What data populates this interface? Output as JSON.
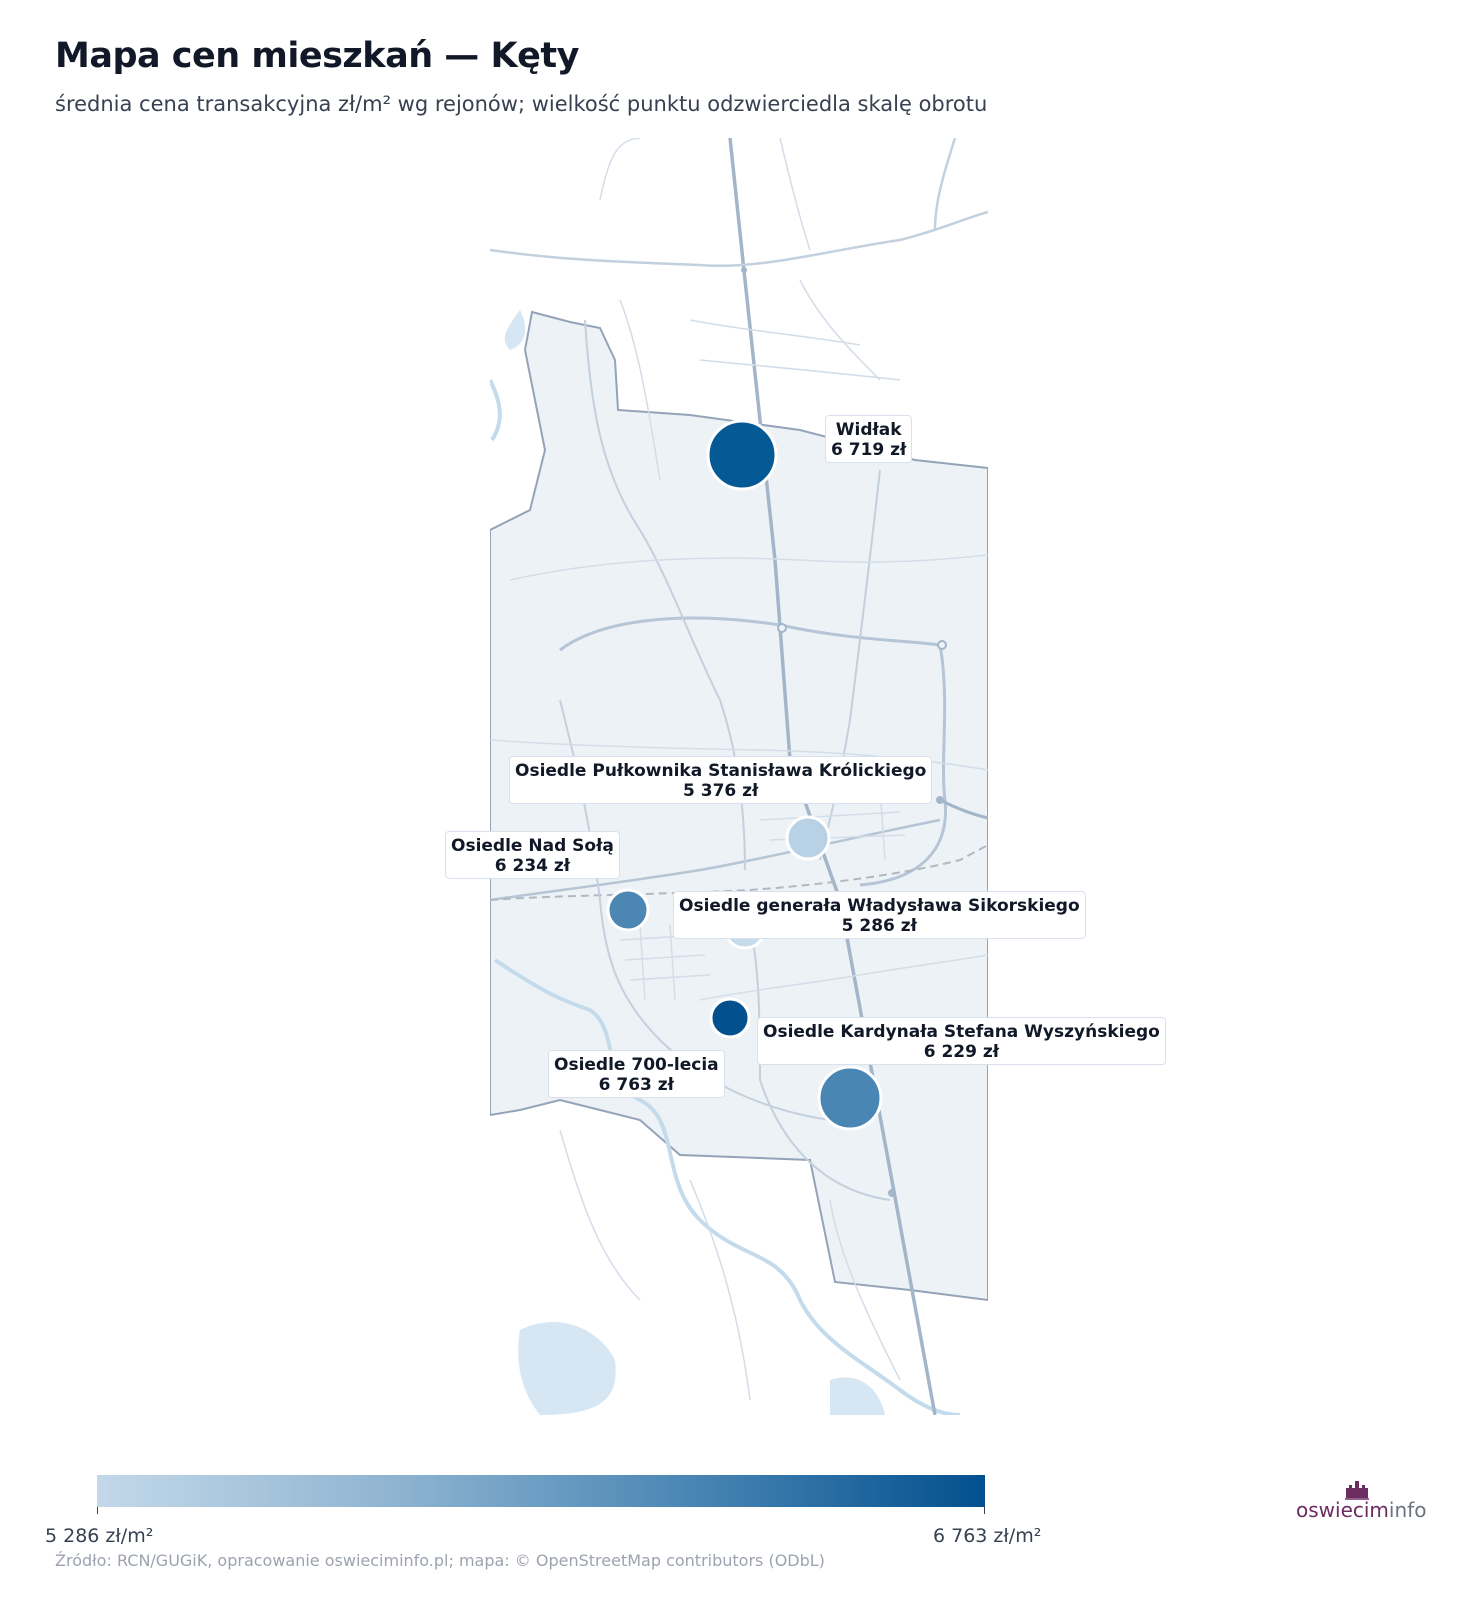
{
  "title": "Mapa cen mieszkań — Kęty",
  "subtitle": "średnia cena transakcyjna zł/m² wg rejonów; wielkość punktu odzwierciedla skalę obrotu",
  "map": {
    "basemap": "OpenStreetMap",
    "regions": [
      {
        "name": "Widłak",
        "price_label": "6 719 zł",
        "price": 6719,
        "color": "#055a96"
      },
      {
        "name": "Osiedle Pułkownika Stanisława Królickiego",
        "price_label": "5 376 zł",
        "price": 5376,
        "color": "#b9d1e5"
      },
      {
        "name": "Osiedle Nad Sołą",
        "price_label": "6 234 zł",
        "price": 6234,
        "color": "#4c87b4"
      },
      {
        "name": "Osiedle generała Władysława Sikorskiego",
        "price_label": "5 286 zł",
        "price": 5286,
        "color": "#c6dbec"
      },
      {
        "name": "Osiedle Kardynała Stefana Wyszyńskiego",
        "price_label": "6 229 zł",
        "price": 6229,
        "color": "#4a86b4"
      },
      {
        "name": "Osiedle 700-lecia",
        "price_label": "6 763 zł",
        "price": 6763,
        "color": "#03508f"
      }
    ]
  },
  "colorbar": {
    "min_label": "5 286 zł/m²",
    "max_label": "6 763 zł/m²",
    "min": 5286,
    "max": 6763,
    "color_low": "#c3d8e9",
    "color_high": "#03508f"
  },
  "source": "Źródło: RCN/GUGiK, opracowanie oswieciminfo.pl; mapa: © OpenStreetMap contributors (ODbL)",
  "logo": {
    "part1": "oswiecim",
    "part2": "info"
  }
}
